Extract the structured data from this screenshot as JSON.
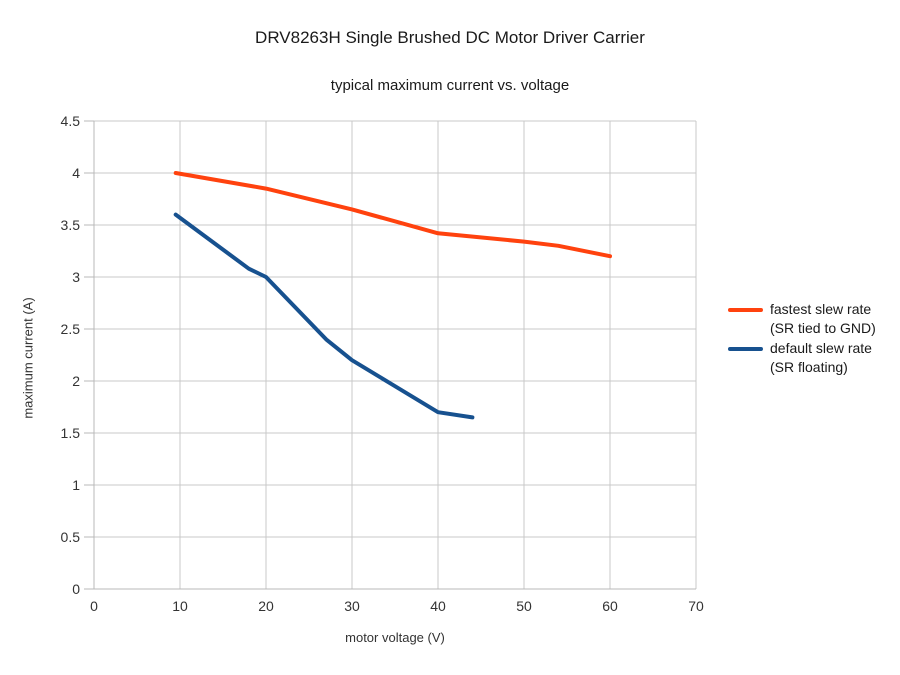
{
  "page": {
    "background": "#ffffff"
  },
  "chart_data": {
    "type": "line",
    "title": "DRV8263H Single Brushed DC Motor Driver Carrier",
    "subtitle": "typical maximum current vs. voltage",
    "xlabel": "motor voltage (V)",
    "ylabel": "maximum current (A)",
    "xlim": [
      0,
      70
    ],
    "ylim": [
      0,
      4.5
    ],
    "x_ticks": [
      0,
      10,
      20,
      30,
      40,
      50,
      60,
      70
    ],
    "y_ticks": [
      0,
      0.5,
      1,
      1.5,
      2,
      2.5,
      3,
      3.5,
      4,
      4.5
    ],
    "grid": true,
    "legend_position": "right-center",
    "colors": {
      "grid": "#c9c9c9",
      "axis": "#b8b8b8",
      "tick_text": "#333333",
      "title_text": "#1a1a1a"
    },
    "series": [
      {
        "name": "fastest slew rate (SR tied to GND)",
        "legend_line1": "fastest slew rate",
        "legend_line2": "(SR tied to GND)",
        "color": "#ff420e",
        "points": [
          [
            9.5,
            4.0
          ],
          [
            20,
            3.85
          ],
          [
            30,
            3.65
          ],
          [
            40,
            3.42
          ],
          [
            50,
            3.34
          ],
          [
            54,
            3.3
          ],
          [
            60,
            3.2
          ]
        ]
      },
      {
        "name": "default slew rate (SR floating)",
        "legend_line1": "default slew rate",
        "legend_line2": "(SR floating)",
        "color": "#17518f",
        "points": [
          [
            9.5,
            3.6
          ],
          [
            18,
            3.08
          ],
          [
            20,
            3.0
          ],
          [
            27,
            2.4
          ],
          [
            30,
            2.2
          ],
          [
            35,
            1.95
          ],
          [
            40,
            1.7
          ],
          [
            44,
            1.65
          ]
        ]
      }
    ]
  }
}
